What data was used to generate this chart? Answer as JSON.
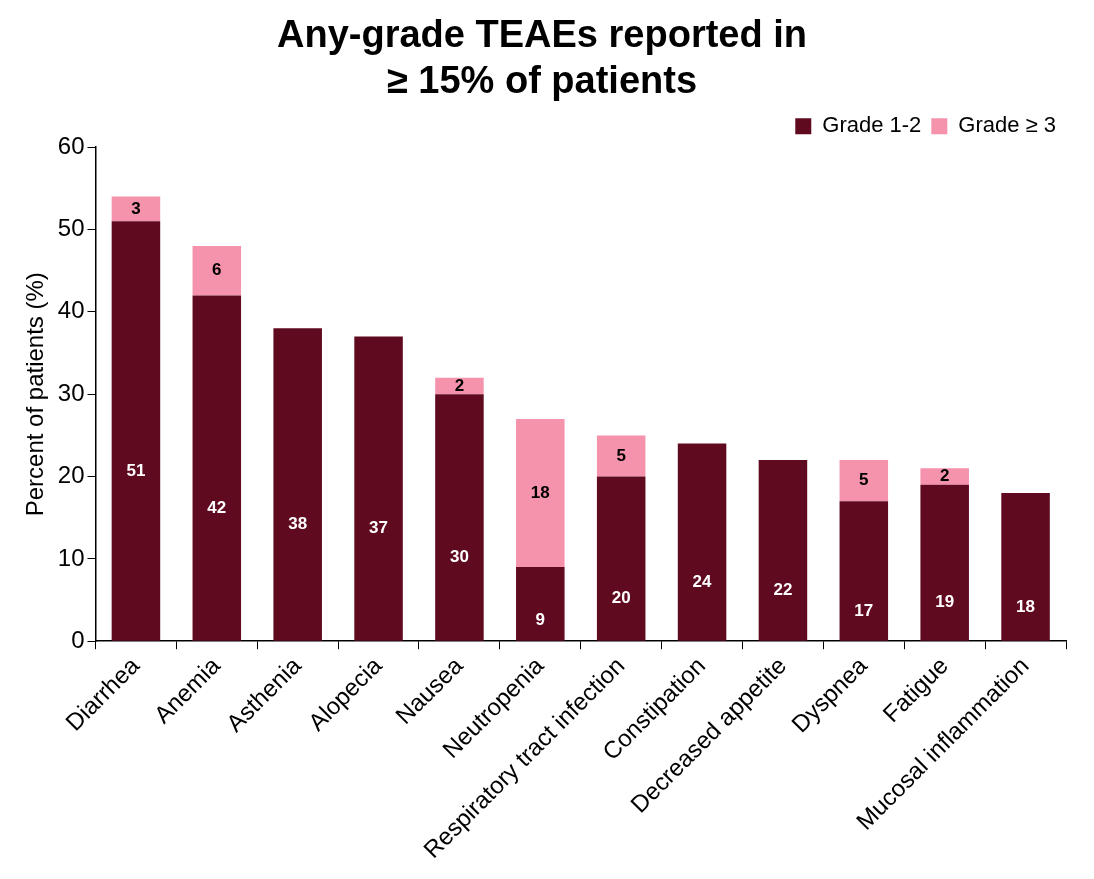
{
  "chart_data": {
    "type": "bar",
    "title": "Any-grade TEAEs reported in\n≥ 15% of patients",
    "ylabel": "Percent of patients (%)",
    "categories": [
      "Diarrhea",
      "Anemia",
      "Asthenia",
      "Alopecia",
      "Nausea",
      "Neutropenia",
      "Respiratory tract infection",
      "Constipation",
      "Decreased appetite",
      "Dyspnea",
      "Fatigue",
      "Mucosal inflammation"
    ],
    "series": [
      {
        "name": "Grade 1-2",
        "color": "#600a20",
        "values": [
          51,
          42,
          38,
          37,
          30,
          9,
          20,
          24,
          22,
          17,
          19,
          18
        ],
        "value_labels": [
          "51",
          "42",
          "38",
          "37",
          "30",
          "9",
          "20",
          "24",
          "22",
          "17",
          "19",
          "18"
        ]
      },
      {
        "name": "Grade ≥ 3",
        "color": "#f592ac",
        "values": [
          3,
          6,
          null,
          null,
          2,
          18,
          5,
          null,
          null,
          5,
          2,
          null
        ],
        "value_labels": [
          "3",
          "6",
          null,
          null,
          "2",
          "18",
          "5",
          null,
          null,
          "5",
          "2",
          null
        ]
      }
    ],
    "stacked": true,
    "ylim": [
      0,
      60
    ],
    "yticks": [
      0,
      10,
      20,
      30,
      40,
      50,
      60
    ],
    "grid": false,
    "legend": "top right"
  }
}
